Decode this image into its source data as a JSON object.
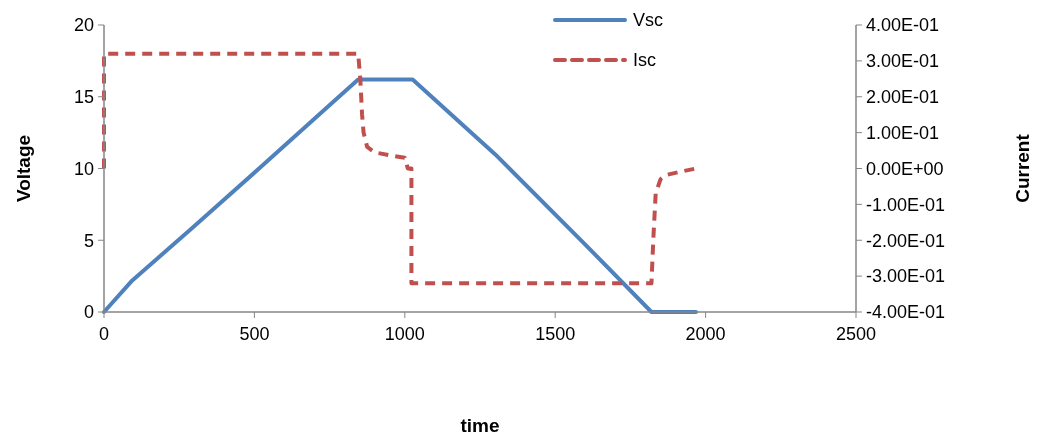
{
  "chart_data": {
    "type": "line",
    "xlabel": "time",
    "ylabel": "Voltage",
    "y2label": "Current",
    "xlim": [
      0,
      2500
    ],
    "xticks": [
      0,
      500,
      1000,
      1500,
      2000,
      2500
    ],
    "ylim": [
      0,
      20
    ],
    "yticks": [
      0,
      5,
      10,
      15,
      20
    ],
    "y2lim": [
      -0.4,
      0.4
    ],
    "y2ticks": [
      {
        "value": -0.4,
        "label": "-4.00E-01"
      },
      {
        "value": -0.3,
        "label": "-3.00E-01"
      },
      {
        "value": -0.2,
        "label": "-2.00E-01"
      },
      {
        "value": -0.1,
        "label": "-1.00E-01"
      },
      {
        "value": 0,
        "label": "0.00E+00"
      },
      {
        "value": 0.1,
        "label": "1.00E-01"
      },
      {
        "value": 0.2,
        "label": "2.00E-01"
      },
      {
        "value": 0.3,
        "label": "3.00E-01"
      },
      {
        "value": 0.4,
        "label": "4.00E-01"
      }
    ],
    "grid": false,
    "legend": "top",
    "marker": "none",
    "series": [
      {
        "name": "Vsc",
        "color": "#4f81bd",
        "line_style": "solid",
        "x": [
          0,
          94,
          296,
          521,
          744,
          845,
          1026,
          1300,
          1600,
          1820,
          1968
        ],
        "values": [
          0,
          2.2,
          5.9,
          10.1,
          14.3,
          16.2,
          16.2,
          11,
          4.7,
          0,
          0
        ]
      },
      {
        "name": "Isc",
        "color": "#c0504d",
        "line_style": "dashed",
        "axis": "y2",
        "x": [
          0,
          0,
          845,
          852,
          858,
          863,
          875,
          900,
          960,
          1000,
          1010,
          1022,
          1022,
          1820,
          1826,
          1834,
          1850,
          1870,
          1910,
          1968
        ],
        "values": [
          0,
          0.32,
          0.32,
          0.25,
          0.15,
          0.1,
          0.06,
          0.045,
          0.035,
          0.03,
          0,
          0,
          -0.32,
          -0.32,
          -0.2,
          -0.07,
          -0.03,
          -0.018,
          -0.01,
          0
        ]
      }
    ]
  }
}
